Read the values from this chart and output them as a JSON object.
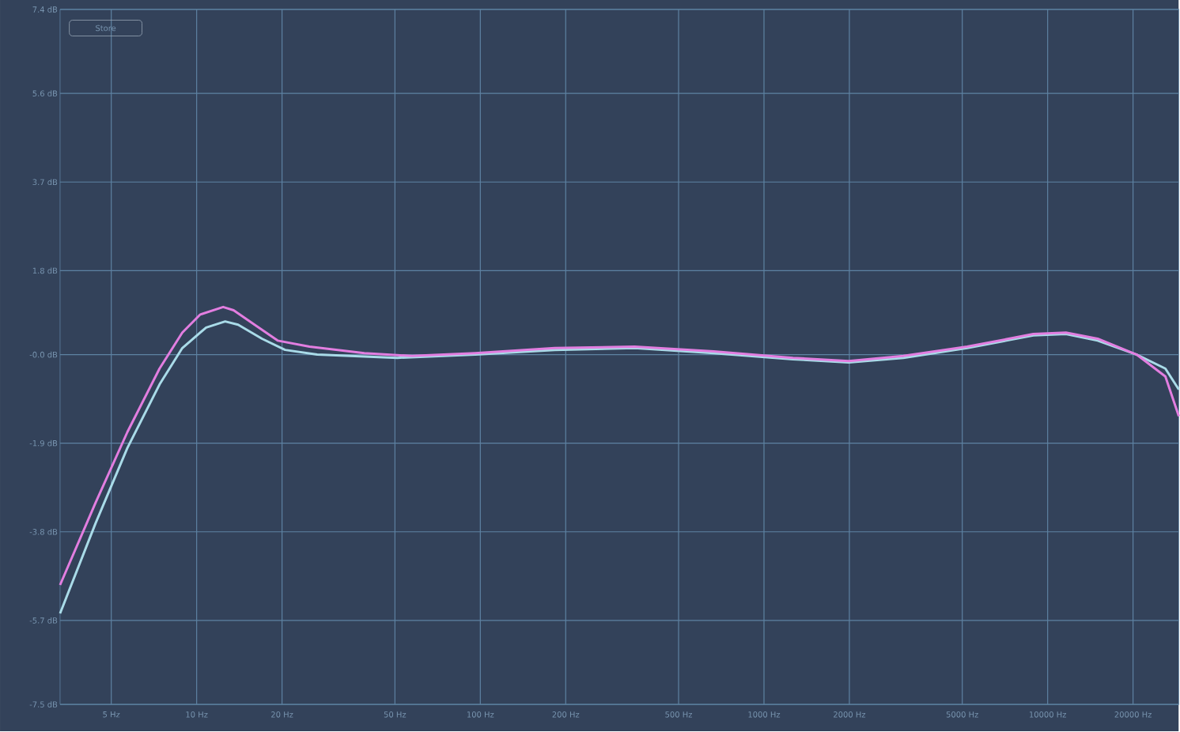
{
  "chart_data": {
    "type": "line",
    "log": "x",
    "grid": true,
    "xlim": [
      3.3,
      29000
    ],
    "ylim": [
      -7.5,
      7.4
    ],
    "xticks": [
      {
        "value": 5,
        "label": "5 Hz"
      },
      {
        "value": 10,
        "label": "10 Hz"
      },
      {
        "value": 20,
        "label": "20 Hz"
      },
      {
        "value": 50,
        "label": "50 Hz"
      },
      {
        "value": 100,
        "label": "100 Hz"
      },
      {
        "value": 200,
        "label": "200 Hz"
      },
      {
        "value": 500,
        "label": "500 Hz"
      },
      {
        "value": 1000,
        "label": "1000 Hz"
      },
      {
        "value": 2000,
        "label": "2000 Hz"
      },
      {
        "value": 5000,
        "label": "5000 Hz"
      },
      {
        "value": 10000,
        "label": "10000 Hz"
      },
      {
        "value": 20000,
        "label": "20000 Hz"
      }
    ],
    "yticks": [
      {
        "value": 7.4,
        "label": "7.4 dB"
      },
      {
        "value": 5.6,
        "label": "5.6 dB"
      },
      {
        "value": 3.7,
        "label": "3.7 dB"
      },
      {
        "value": 1.8,
        "label": "1.8 dB"
      },
      {
        "value": 0,
        "label": "-0.0 dB"
      },
      {
        "value": -1.9,
        "label": "-1.9 dB"
      },
      {
        "value": -3.8,
        "label": "-3.8 dB"
      },
      {
        "value": -5.7,
        "label": "-5.7 dB"
      },
      {
        "value": -7.5,
        "label": "-7.5 dB"
      }
    ],
    "annotations": [
      "Store"
    ],
    "series": [
      {
        "color": "#a9dbe8",
        "x": [
          3.3,
          4.4,
          5.7,
          7.4,
          8.9,
          10.8,
          12.6,
          14,
          17,
          20.5,
          26.6,
          51,
          96,
          183,
          350,
          665,
          1265,
          1990,
          3100,
          5200,
          8900,
          11600,
          15000,
          20600,
          26000,
          29000
        ],
        "values": [
          -5.55,
          -3.62,
          -2.0,
          -0.64,
          0.14,
          0.58,
          0.71,
          0.64,
          0.34,
          0.1,
          0.0,
          -0.07,
          0.0,
          0.1,
          0.14,
          0.03,
          -0.1,
          -0.17,
          -0.07,
          0.14,
          0.41,
          0.44,
          0.3,
          0.0,
          -0.3,
          -0.75
        ]
      },
      {
        "color": "#e27ee0",
        "x": [
          3.3,
          4.4,
          5.7,
          7.4,
          8.9,
          10.3,
          12.4,
          13.5,
          16,
          19.3,
          25,
          39,
          57.5,
          96,
          183,
          350,
          665,
          1265,
          1990,
          3100,
          5200,
          8900,
          11600,
          15000,
          20600,
          26000,
          29000
        ],
        "values": [
          -4.94,
          -3.18,
          -1.66,
          -0.3,
          0.47,
          0.86,
          1.02,
          0.95,
          0.64,
          0.3,
          0.17,
          0.03,
          -0.03,
          0.03,
          0.14,
          0.17,
          0.07,
          -0.07,
          -0.14,
          -0.03,
          0.17,
          0.44,
          0.47,
          0.34,
          0.0,
          -0.47,
          -1.32
        ]
      }
    ]
  }
}
